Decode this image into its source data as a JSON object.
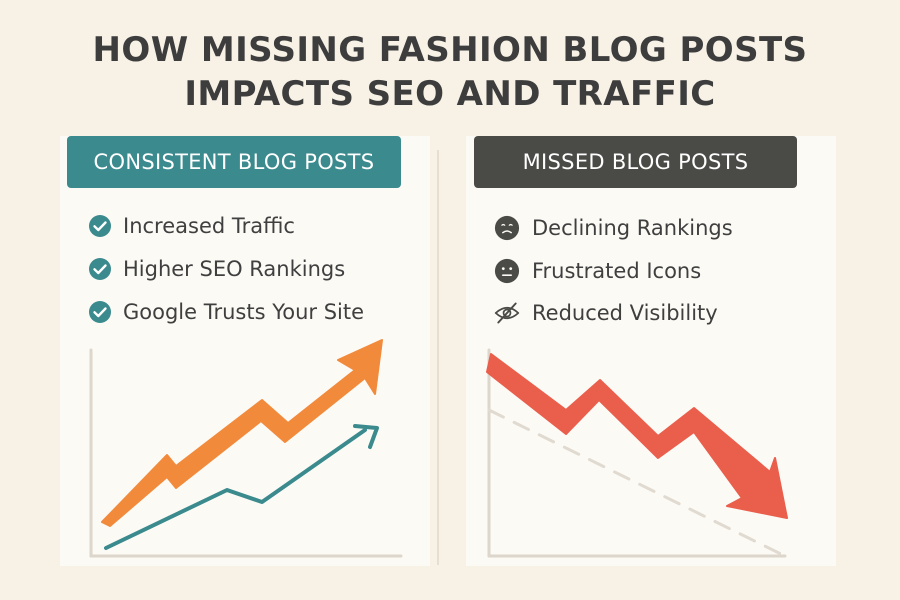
{
  "title": {
    "line1": "HOW MISSING FASHION BLOG POSTS",
    "line2": "IMPACTS SEO AND TRAFFIC"
  },
  "left": {
    "header": "CONSISTENT BLOG POSTS",
    "items": [
      {
        "label": "Increased Traffic",
        "icon": "check-circle-icon"
      },
      {
        "label": "Higher SEO Rankings",
        "icon": "check-circle-icon"
      },
      {
        "label": "Google Trusts Your Site",
        "icon": "check-circle-icon"
      }
    ]
  },
  "right": {
    "header": "MISSED BLOG POSTS",
    "items": [
      {
        "label": "Declining Rankings",
        "icon": "sad-face-icon"
      },
      {
        "label": "Frustrated Icons",
        "icon": "neutral-face-icon"
      },
      {
        "label": "Reduced Visibility",
        "icon": "eye-slash-icon"
      }
    ]
  },
  "colors": {
    "background": "#f7f1e6",
    "panel": "#fcfaf5",
    "teal": "#3a8a8e",
    "dark": "#4a4a46",
    "orange": "#f28a3c",
    "red": "#ea5e4c",
    "text": "#3f3f3f",
    "axis": "#dcd6cc",
    "dashed": "#e0dad0"
  }
}
